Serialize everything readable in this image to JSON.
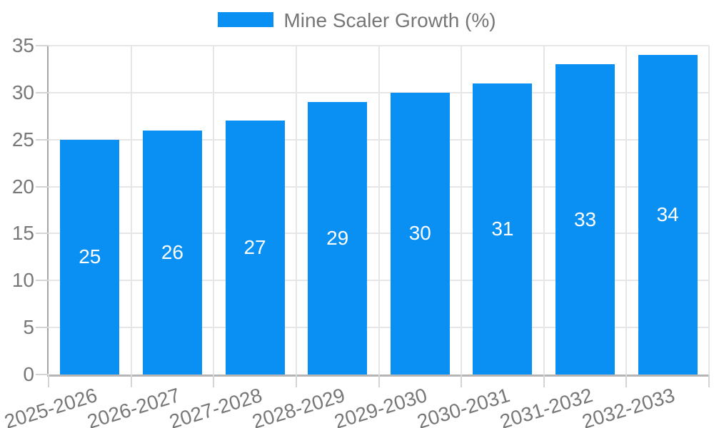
{
  "legend": {
    "items": [
      {
        "label": "Mine Scaler Growth (%)",
        "color": "#0a90f2"
      }
    ]
  },
  "chart_data": {
    "type": "bar",
    "title": "Mine Scaler Growth (%)",
    "categories": [
      "2025-2026",
      "2026-2027",
      "2027-2028",
      "2028-2029",
      "2029-2030",
      "2030-2031",
      "2031-2032",
      "2032-2033"
    ],
    "values": [
      25,
      26,
      27,
      29,
      30,
      31,
      33,
      34
    ],
    "value_labels": [
      "25",
      "26",
      "27",
      "29",
      "30",
      "31",
      "33",
      "34"
    ],
    "xlabel": "",
    "ylabel": "",
    "ylim": [
      0,
      35
    ],
    "yticks": [
      0,
      5,
      10,
      15,
      20,
      25,
      30,
      35
    ],
    "grid": true,
    "legend_position": "top-center",
    "bar_color": "#0a90f2",
    "value_label_color": "#ffffff",
    "axis_text_color": "#787878",
    "grid_color": "#e6e6e6"
  }
}
